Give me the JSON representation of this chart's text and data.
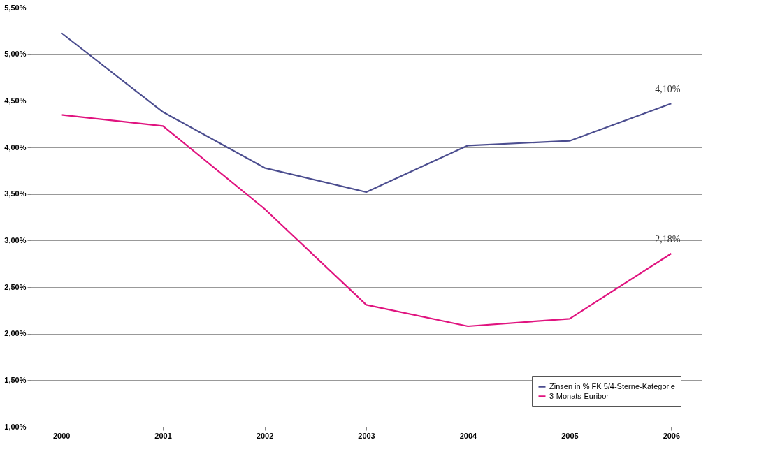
{
  "chart_data": {
    "type": "line",
    "categories": [
      "2000",
      "2001",
      "2002",
      "2003",
      "2004",
      "2005",
      "2006"
    ],
    "series": [
      {
        "name": "Zinsen in % FK 5/4-Sterne-Kategorie",
        "color": "#4b4d8f",
        "values": [
          5.23,
          4.38,
          3.78,
          3.52,
          4.02,
          4.07,
          4.47
        ]
      },
      {
        "name": "3-Monats-Euribor",
        "color": "#e0137f",
        "values": [
          4.35,
          4.23,
          3.34,
          2.31,
          2.08,
          2.16,
          2.86
        ]
      }
    ],
    "ylim": [
      1.0,
      5.5
    ],
    "yticks": [
      {
        "value": 1.0,
        "label": "1,00%"
      },
      {
        "value": 1.5,
        "label": "1,50%"
      },
      {
        "value": 2.0,
        "label": "2,00%"
      },
      {
        "value": 2.5,
        "label": "2,50%"
      },
      {
        "value": 3.0,
        "label": "3,00%"
      },
      {
        "value": 3.5,
        "label": "3,50%"
      },
      {
        "value": 4.0,
        "label": "4,00%"
      },
      {
        "value": 4.5,
        "label": "4,50%"
      },
      {
        "value": 5.0,
        "label": "5,00%"
      },
      {
        "value": 5.5,
        "label": "5,50%"
      }
    ],
    "annotations": [
      {
        "text": "4,10%",
        "x": "2006",
        "y": 4.47
      },
      {
        "text": "2,18%",
        "x": "2006",
        "y": 2.86
      }
    ],
    "grid": "y",
    "legend": "bottom right",
    "marker": "none",
    "line_style": "solid"
  }
}
